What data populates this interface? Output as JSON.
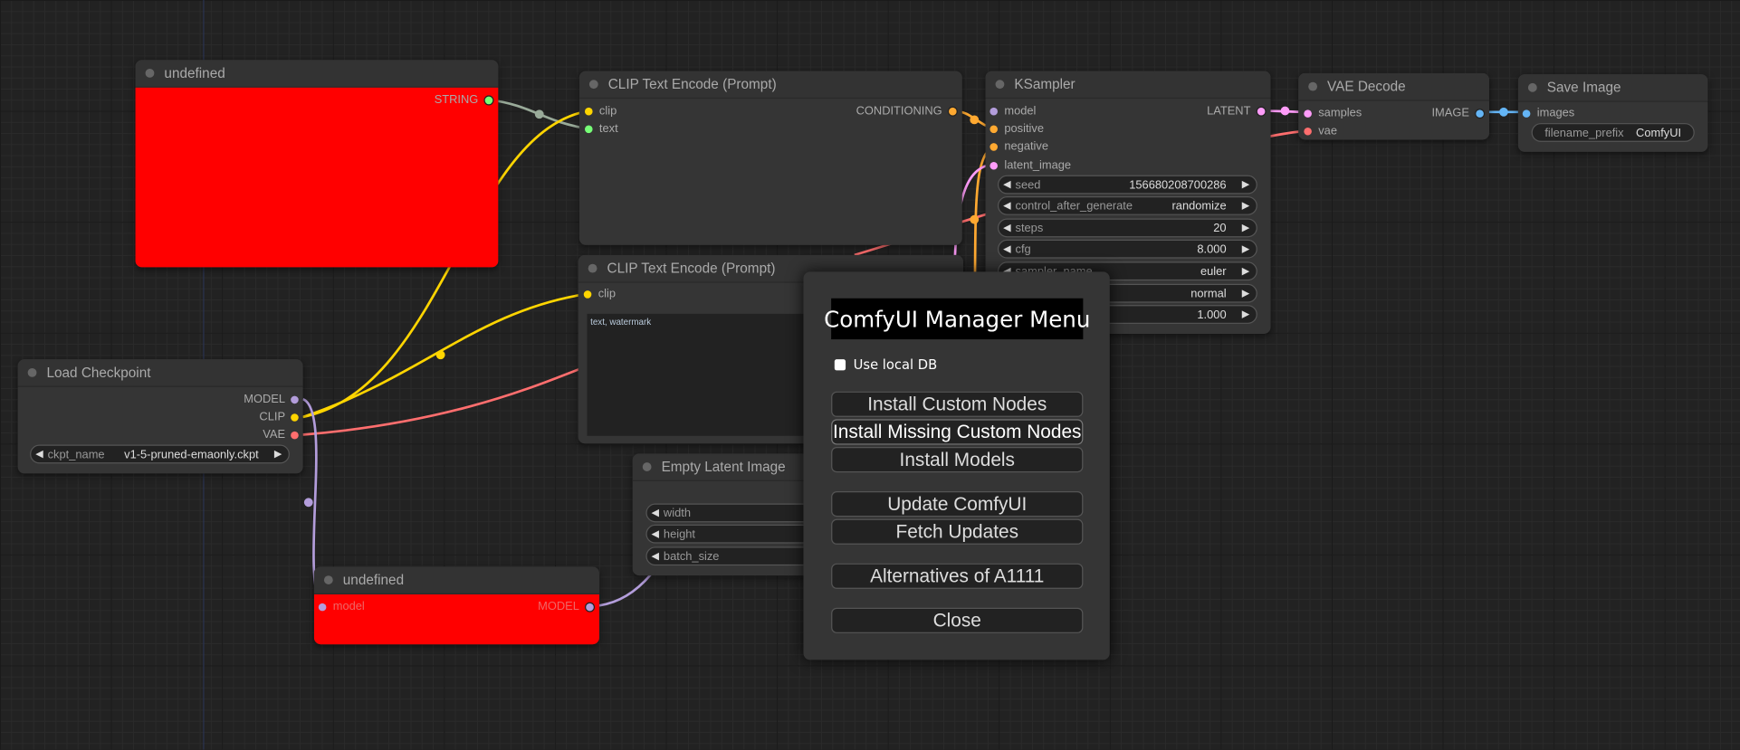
{
  "nodes": {
    "undefined_top": {
      "title": "undefined",
      "out": "STRING"
    },
    "clip1": {
      "title": "CLIP Text Encode (Prompt)",
      "in": [
        "clip",
        "text"
      ],
      "out": "CONDITIONING"
    },
    "ksampler": {
      "title": "KSampler",
      "in": [
        "model",
        "positive",
        "negative",
        "latent_image"
      ],
      "out": "LATENT",
      "widgets": [
        {
          "name": "seed",
          "value": "156680208700286"
        },
        {
          "name": "control_after_generate",
          "value": "randomize"
        },
        {
          "name": "steps",
          "value": "20"
        },
        {
          "name": "cfg",
          "value": "8.000"
        },
        {
          "name": "sampler_name",
          "value": "euler"
        },
        {
          "name": "",
          "value": "normal"
        },
        {
          "name": "",
          "value": "1.000"
        }
      ]
    },
    "vae_decode": {
      "title": "VAE Decode",
      "in": [
        "samples",
        "vae"
      ],
      "out": "IMAGE"
    },
    "save_image": {
      "title": "Save Image",
      "in": [
        "images"
      ],
      "widget": {
        "name": "filename_prefix",
        "value": "ComfyUI"
      }
    },
    "clip2": {
      "title": "CLIP Text Encode (Prompt)",
      "in": [
        "clip"
      ],
      "text": "text, watermark"
    },
    "load_checkpoint": {
      "title": "Load Checkpoint",
      "out": [
        "MODEL",
        "CLIP",
        "VAE"
      ],
      "widget": {
        "name": "ckpt_name",
        "value": "v1-5-pruned-emaonly.ckpt"
      }
    },
    "undefined_bottom": {
      "title": "undefined",
      "in": "model",
      "out": "MODEL"
    },
    "empty_latent": {
      "title": "Empty Latent Image",
      "widgets": [
        "width",
        "height",
        "batch_size"
      ]
    }
  },
  "manager": {
    "title": "ComfyUI Manager Menu",
    "use_local_db": "Use local DB",
    "use_local_db_checked": false,
    "buttons": [
      "Install Custom Nodes",
      "Install Missing Custom Nodes",
      "Install Models",
      "Update ComfyUI",
      "Fetch Updates",
      "Alternatives of A1111",
      "Close"
    ]
  },
  "colors": {
    "model": "#b39ddb",
    "clip": "#ffd500",
    "vae": "#ff6e6e",
    "conditioning": "#ffa931",
    "latent": "#ff9cf9",
    "image": "#64b5f6",
    "string": "#77ff77"
  }
}
